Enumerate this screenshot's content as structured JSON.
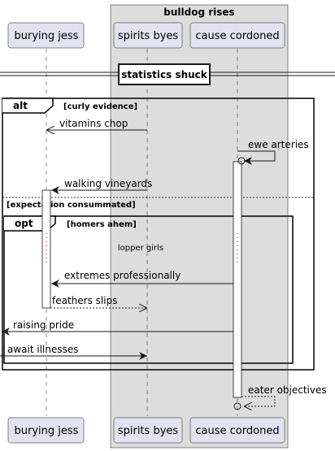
{
  "box": {
    "title": "bulldog rises"
  },
  "participants": {
    "jess": "burying jess",
    "spirits": "spirits byes",
    "cause": "cause cordoned"
  },
  "divider_top": "statistics shuck",
  "alt": {
    "keyword": "alt",
    "condition": "[curly evidence]",
    "else_condition": "[expectation consummated]"
  },
  "opt": {
    "keyword": "opt",
    "condition": "[homers ahem]"
  },
  "messages": {
    "m1": "vitamins chop",
    "m2": "ewe arteries",
    "m3": "walking vineyards",
    "m4": "extremes professionally",
    "m5": "feathers slips",
    "m6": "raising pride",
    "m7": "await illnesses",
    "m8": "eater objectives"
  },
  "delay": "lopper girls",
  "colors": {
    "participant_fill": "#E2E2F0",
    "participant_border": "#181818",
    "box_fill": "#DDDDDD",
    "lifeline": "#181818"
  }
}
